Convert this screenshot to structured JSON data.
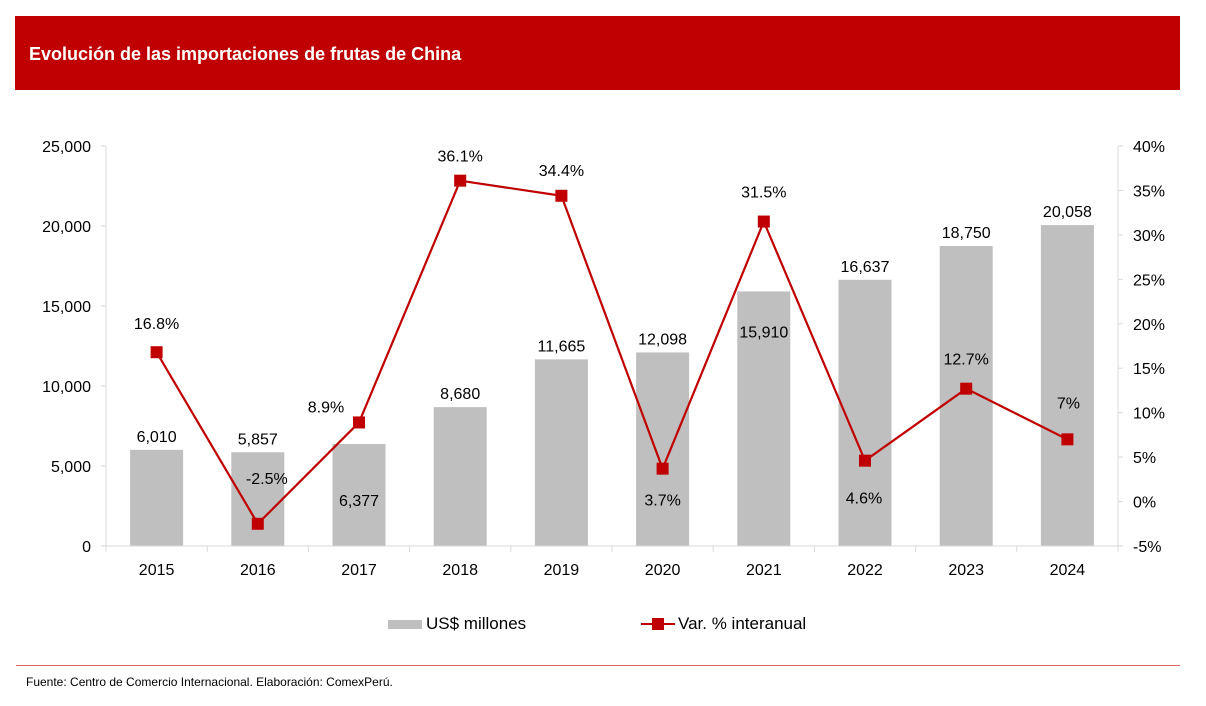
{
  "header": {
    "title": "Evolución de las importaciones de frutas de China"
  },
  "colors": {
    "header_bg": "#c00000",
    "bar": "#bfbfbf",
    "line": "#c00000",
    "axis": "#d9d9d9"
  },
  "chart_data": {
    "type": "bar",
    "title": "Evolución de las importaciones de frutas de China",
    "categories": [
      "2015",
      "2016",
      "2017",
      "2018",
      "2019",
      "2020",
      "2021",
      "2022",
      "2023",
      "2024"
    ],
    "series": [
      {
        "name": "US$ millones",
        "type": "bar",
        "axis": "left",
        "values": [
          6010,
          5857,
          6377,
          8680,
          11665,
          12098,
          15910,
          16637,
          18750,
          20058
        ],
        "labels": [
          "6,010",
          "5,857",
          "6,377",
          "8,680",
          "11,665",
          "12,098",
          "15,910",
          "16,637",
          "18,750",
          "20,058"
        ]
      },
      {
        "name": "Var. % interanual",
        "type": "line",
        "axis": "right",
        "values": [
          16.8,
          -2.5,
          8.9,
          36.1,
          34.4,
          3.7,
          31.5,
          4.6,
          12.7,
          7.0
        ],
        "labels": [
          "16.8%",
          "-2.5%",
          "8.9%",
          "36.1%",
          "34.4%",
          "3.7%",
          "31.5%",
          "4.6%",
          "12.7%",
          "7%"
        ]
      }
    ],
    "y_left": {
      "min": 0,
      "max": 25000,
      "step": 5000,
      "ticks": [
        "0",
        "5,000",
        "10,000",
        "15,000",
        "20,000",
        "25,000"
      ]
    },
    "y_right": {
      "min": -5,
      "max": 40,
      "step": 5,
      "ticks": [
        "-5%",
        "0%",
        "5%",
        "10%",
        "15%",
        "20%",
        "25%",
        "30%",
        "35%",
        "40%"
      ]
    },
    "xlabel": "",
    "ylabel": "",
    "grid": false,
    "legend_position": "bottom"
  },
  "legend": {
    "bar_label": "US$ millones",
    "line_label": "Var. % interanual"
  },
  "footer": {
    "source": "Fuente: Centro de Comercio Internacional. Elaboración: ComexPerú."
  }
}
